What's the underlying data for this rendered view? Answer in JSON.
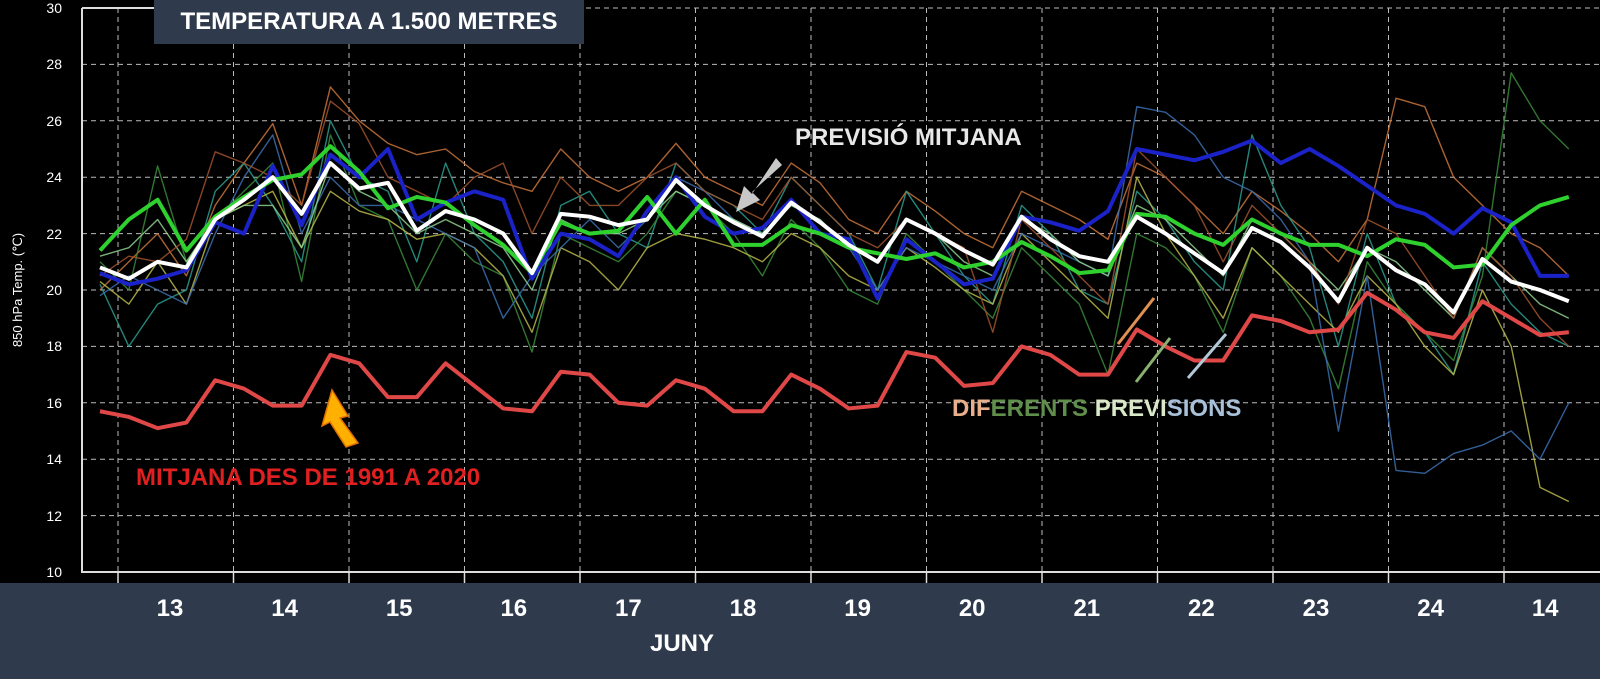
{
  "title": "TEMPERATURA A 1.500 METRES",
  "chart_data": {
    "type": "line",
    "title": "TEMPERATURA A 1.500 METRES",
    "ylabel": "850 hPa Temp. (℃)",
    "xlabel": "JUNY",
    "ylim": [
      10,
      30
    ],
    "yticks": [
      10,
      12,
      14,
      16,
      18,
      20,
      22,
      24,
      26,
      28,
      30
    ],
    "xtick_labels": [
      "13",
      "14",
      "15",
      "16",
      "17",
      "18",
      "19",
      "20",
      "21",
      "22",
      "23",
      "24",
      "14"
    ],
    "x_step": "6h",
    "grid": true,
    "series": [
      {
        "name": "member-1",
        "role": "member",
        "color": "#c8733a",
        "values": [
          20.0,
          21.0,
          22.0,
          20.5,
          23.0,
          24.5,
          25.9,
          23.0,
          27.2,
          26.0,
          25.2,
          24.8,
          25.0,
          24.2,
          23.8,
          23.5,
          25.0,
          24.0,
          23.5,
          24.0,
          25.2,
          24.0,
          23.5,
          23.0,
          24.5,
          23.8,
          22.5,
          22.0,
          23.5,
          22.8,
          22.0,
          21.5,
          23.5,
          23.0,
          22.5,
          21.8,
          24.5,
          24.0,
          23.0,
          22.0,
          23.5,
          22.8,
          22.0,
          21.0,
          22.5,
          26.8,
          26.5,
          24.0,
          23.0,
          22.0,
          21.5,
          20.5
        ]
      },
      {
        "name": "member-2",
        "role": "member",
        "color": "#2a9d8f",
        "values": [
          20.2,
          18.0,
          19.5,
          20.0,
          23.5,
          24.5,
          23.0,
          21.0,
          26.0,
          24.0,
          23.5,
          21.0,
          24.5,
          22.0,
          21.0,
          19.0,
          23.0,
          23.5,
          22.0,
          21.5,
          24.5,
          23.5,
          23.0,
          22.0,
          24.0,
          23.0,
          22.0,
          20.0,
          23.5,
          22.0,
          20.5,
          19.5,
          23.0,
          22.0,
          20.0,
          19.5,
          23.5,
          22.5,
          21.0,
          20.0,
          25.5,
          23.0,
          21.5,
          18.0,
          22.0,
          19.5,
          18.5,
          17.0,
          21.0,
          19.5,
          18.5,
          18.0
        ]
      },
      {
        "name": "member-3",
        "role": "member",
        "color": "#3a8a3a",
        "values": [
          21.0,
          20.0,
          24.4,
          21.0,
          22.5,
          23.5,
          24.5,
          20.3,
          25.5,
          23.0,
          22.5,
          20.0,
          22.0,
          21.0,
          20.5,
          17.8,
          22.0,
          21.5,
          21.0,
          22.0,
          23.5,
          23.0,
          22.0,
          20.5,
          22.5,
          21.5,
          20.0,
          19.5,
          22.0,
          21.0,
          20.0,
          19.0,
          21.5,
          20.5,
          19.5,
          17.0,
          22.0,
          21.5,
          20.5,
          18.5,
          21.5,
          20.5,
          19.0,
          16.5,
          21.0,
          19.5,
          18.5,
          17.5,
          20.5,
          27.7,
          26.0,
          25.0
        ]
      },
      {
        "name": "member-4",
        "role": "member",
        "color": "#b9b94a",
        "values": [
          20.3,
          19.5,
          21.0,
          19.5,
          22.5,
          23.0,
          23.5,
          21.5,
          23.5,
          22.8,
          22.5,
          21.8,
          22.0,
          21.5,
          20.5,
          18.5,
          21.5,
          21.0,
          20.0,
          21.5,
          22.0,
          21.8,
          21.5,
          21.0,
          22.0,
          21.5,
          20.5,
          20.0,
          21.5,
          20.8,
          20.0,
          19.5,
          22.0,
          21.0,
          20.0,
          19.0,
          24.0,
          22.0,
          20.5,
          19.0,
          21.5,
          20.5,
          19.5,
          18.5,
          20.5,
          19.5,
          18.0,
          17.0,
          20.0,
          18.0,
          13.0,
          12.5
        ]
      },
      {
        "name": "member-5",
        "role": "member",
        "color": "#3b6fb0",
        "values": [
          19.8,
          20.5,
          20.0,
          19.5,
          22.0,
          24.0,
          25.5,
          22.0,
          24.0,
          23.0,
          23.0,
          22.5,
          22.0,
          21.5,
          19.0,
          20.5,
          21.5,
          22.5,
          21.5,
          22.5,
          24.0,
          23.5,
          22.5,
          22.0,
          23.0,
          22.5,
          21.5,
          20.0,
          21.5,
          21.0,
          20.5,
          20.0,
          22.0,
          21.5,
          21.0,
          20.5,
          26.5,
          26.3,
          25.5,
          24.0,
          23.5,
          22.5,
          21.0,
          15.0,
          20.5,
          13.6,
          13.5,
          14.2,
          14.5,
          15.0,
          14.0,
          16.0
        ]
      },
      {
        "name": "member-6",
        "role": "member",
        "color": "#8fd18f",
        "values": [
          21.2,
          21.5,
          22.5,
          21.0,
          22.5,
          23.0,
          23.0,
          21.5,
          24.5,
          23.5,
          23.0,
          22.0,
          22.5,
          22.0,
          21.5,
          20.0,
          22.5,
          22.0,
          22.0,
          22.5,
          23.5,
          23.0,
          22.5,
          22.0,
          23.0,
          22.5,
          21.5,
          21.0,
          22.5,
          22.0,
          21.0,
          20.5,
          22.5,
          22.0,
          21.0,
          20.5,
          23.0,
          22.5,
          21.5,
          20.5,
          22.5,
          22.0,
          21.0,
          20.0,
          21.5,
          21.0,
          20.0,
          19.0,
          21.5,
          20.5,
          19.5,
          19.0
        ]
      },
      {
        "name": "member-7",
        "role": "member",
        "color": "#a0522d",
        "values": [
          20.5,
          21.2,
          21.0,
          21.8,
          24.9,
          24.5,
          24.0,
          23.0,
          26.7,
          25.9,
          24.0,
          23.5,
          23.0,
          24.0,
          24.5,
          22.0,
          24.0,
          23.0,
          23.0,
          24.0,
          24.5,
          23.5,
          23.0,
          22.5,
          24.0,
          23.0,
          22.0,
          21.5,
          22.5,
          22.0,
          21.5,
          18.5,
          22.5,
          21.5,
          20.5,
          19.5,
          25.0,
          24.0,
          23.0,
          21.0,
          23.0,
          22.0,
          21.0,
          19.5,
          22.5,
          22.0,
          20.5,
          19.0,
          21.5,
          20.5,
          19.0,
          18.0
        ]
      },
      {
        "name": "operational",
        "role": "main",
        "color": "#1a22c8",
        "values": [
          20.6,
          20.2,
          20.4,
          20.7,
          22.4,
          22.0,
          24.4,
          22.3,
          24.8,
          24.0,
          25.0,
          22.5,
          23.1,
          23.5,
          23.2,
          20.4,
          22.0,
          21.8,
          21.2,
          22.8,
          24.0,
          22.6,
          22.0,
          22.2,
          23.2,
          22.0,
          21.8,
          19.7,
          21.8,
          21.0,
          20.2,
          20.4,
          22.6,
          22.4,
          22.1,
          22.8,
          25.0,
          24.8,
          24.6,
          24.9,
          25.3,
          24.5,
          25.0,
          24.4,
          23.7,
          23.0,
          22.7,
          22.0,
          22.9,
          22.4,
          20.5,
          20.5
        ]
      },
      {
        "name": "control",
        "role": "main",
        "color": "#2ed12e",
        "values": [
          21.4,
          22.5,
          23.2,
          21.4,
          22.6,
          23.3,
          23.9,
          24.1,
          25.1,
          24.2,
          22.9,
          23.3,
          23.1,
          22.3,
          21.6,
          20.6,
          22.4,
          22.0,
          22.1,
          23.3,
          22.0,
          23.2,
          21.6,
          21.6,
          22.3,
          22.0,
          21.5,
          21.3,
          21.1,
          21.3,
          20.8,
          21.0,
          21.7,
          21.2,
          20.6,
          20.7,
          22.7,
          22.6,
          22.0,
          21.6,
          22.5,
          22.0,
          21.6,
          21.6,
          21.2,
          21.8,
          21.6,
          20.8,
          20.9,
          22.3,
          23.0,
          23.3
        ]
      },
      {
        "name": "PREVISIÓ MITJANA",
        "role": "mean",
        "color": "#ffffff",
        "values": [
          20.8,
          20.4,
          21.0,
          20.8,
          22.5,
          23.2,
          24.0,
          22.7,
          24.5,
          23.6,
          23.8,
          22.1,
          22.8,
          22.5,
          22.0,
          20.6,
          22.7,
          22.6,
          22.3,
          22.5,
          23.9,
          23.0,
          22.4,
          21.9,
          23.1,
          22.4,
          21.6,
          21.0,
          22.5,
          22.0,
          21.4,
          20.9,
          22.6,
          21.8,
          21.2,
          21.0,
          22.6,
          22.0,
          21.3,
          20.6,
          22.2,
          21.7,
          20.8,
          19.6,
          21.5,
          20.7,
          20.2,
          19.2,
          21.1,
          20.3,
          20.0,
          19.6
        ]
      },
      {
        "name": "MITJANA DES DE 1991 A 2020",
        "role": "climate",
        "color": "#e04848",
        "values": [
          15.7,
          15.5,
          15.1,
          15.3,
          16.8,
          16.5,
          15.9,
          15.9,
          17.7,
          17.4,
          16.2,
          16.2,
          17.4,
          16.6,
          15.8,
          15.7,
          17.1,
          17.0,
          16.0,
          15.9,
          16.8,
          16.5,
          15.7,
          15.7,
          17.0,
          16.5,
          15.8,
          15.9,
          17.8,
          17.6,
          16.6,
          16.7,
          18.0,
          17.7,
          17.0,
          17.0,
          18.6,
          18.0,
          17.5,
          17.5,
          19.1,
          18.9,
          18.5,
          18.6,
          19.9,
          19.3,
          18.5,
          18.3,
          19.6,
          19.0,
          18.4,
          18.5
        ]
      }
    ],
    "annotations": {
      "mean_label": "PREVISIÓ MITJANA",
      "climate_label": "MITJANA DES DE 1991 A 2020",
      "members_label_parts": [
        {
          "text": "DIF",
          "color": "#e8b08a"
        },
        {
          "text": "ERENTS",
          "color": "#5f8f4a"
        },
        {
          "text": " PREVI",
          "color": "#d8e8c8"
        },
        {
          "text": "SIONS",
          "color": "#a8c0d8"
        }
      ]
    }
  }
}
